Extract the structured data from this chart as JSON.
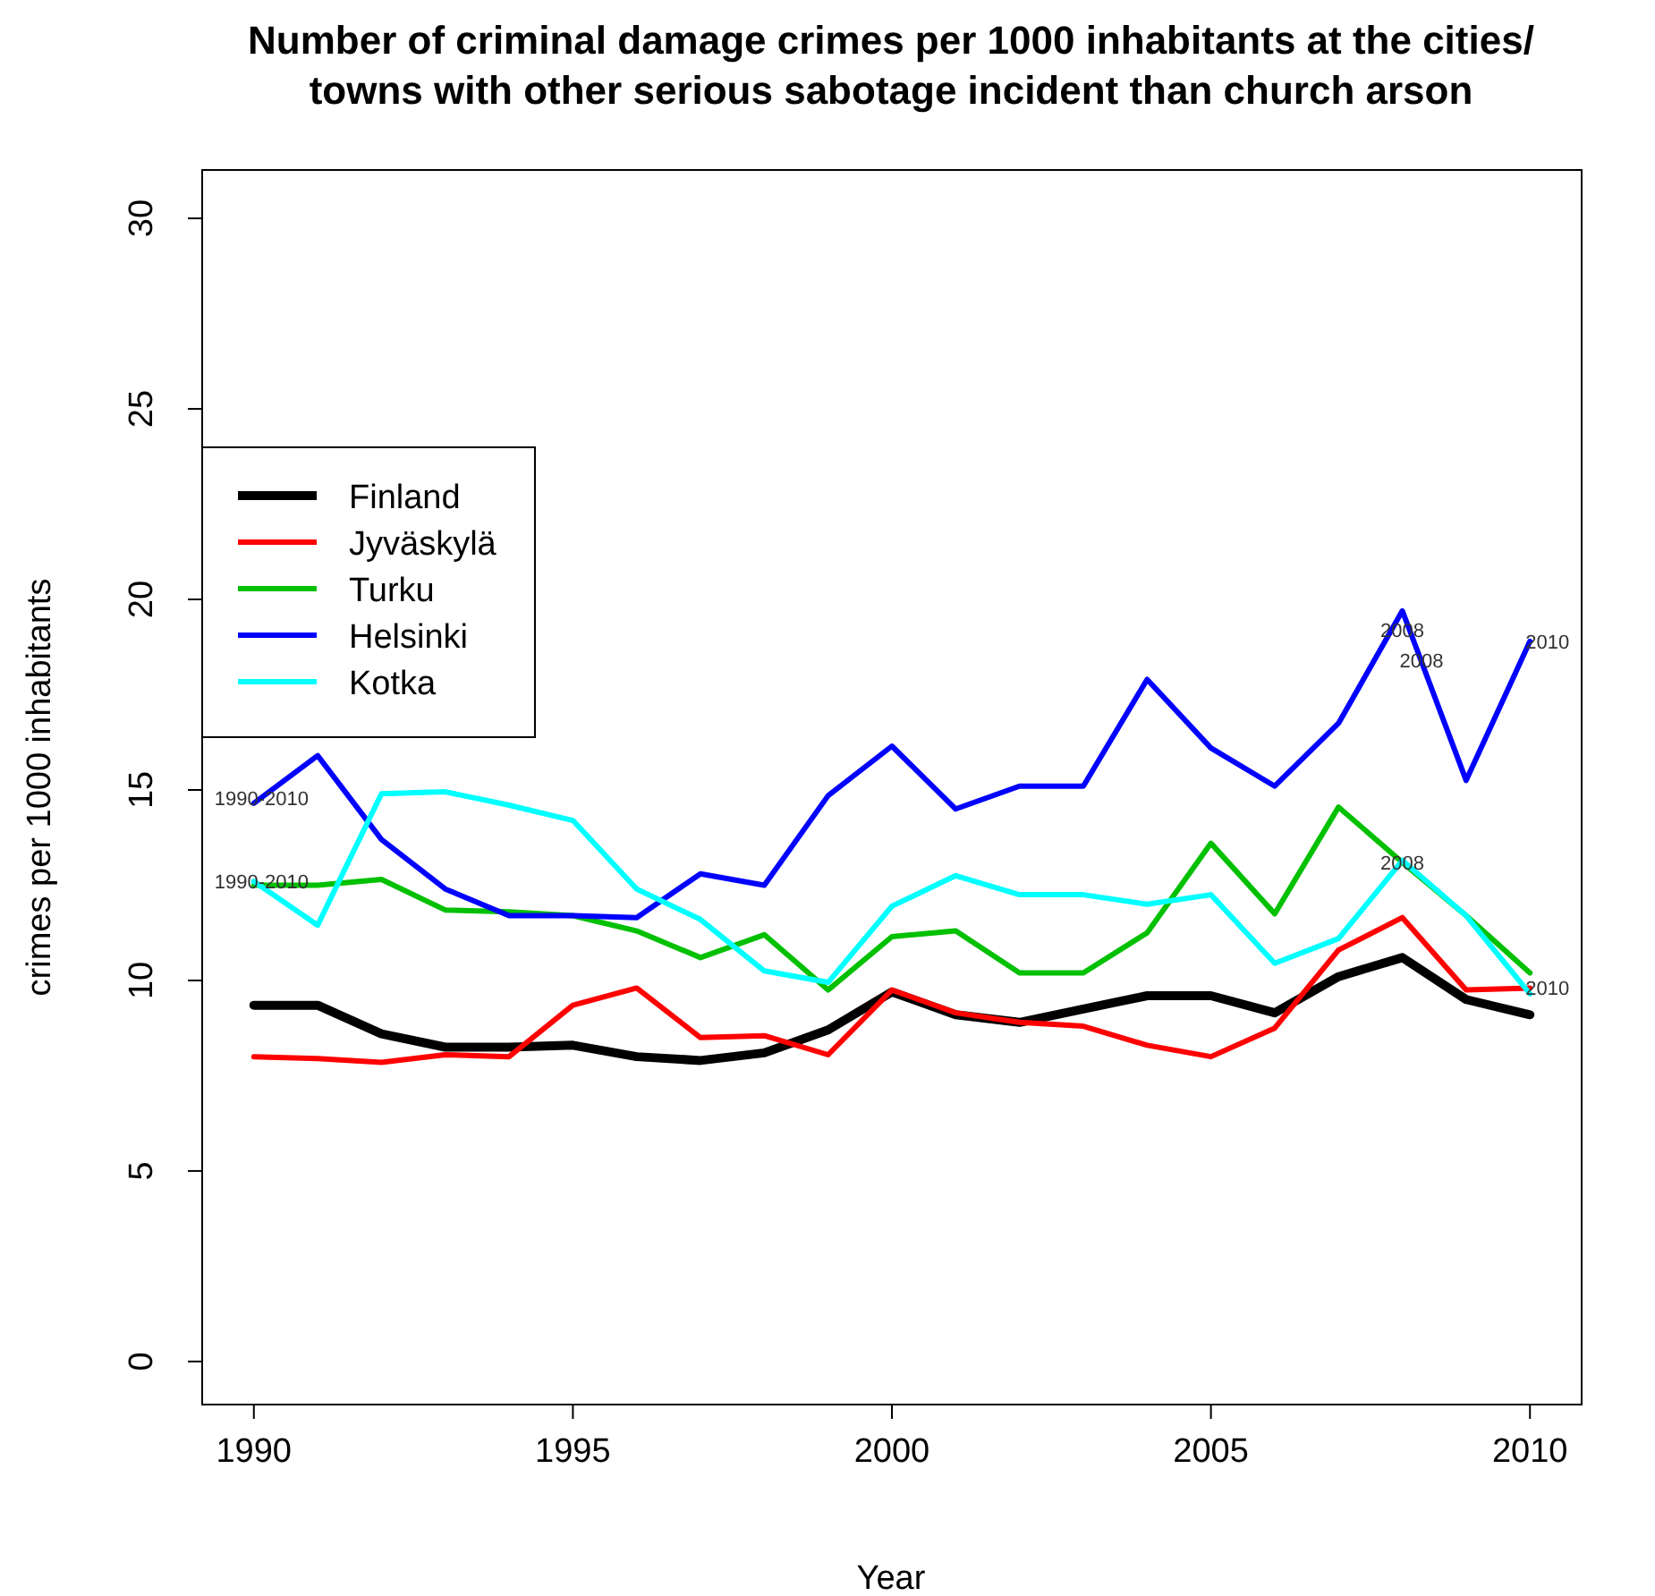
{
  "chart_data": {
    "type": "line",
    "title": "Number of criminal damage crimes per 1000 inhabitants at the cities/ towns with other serious sabotage incident than church arson",
    "xlabel": "Year",
    "ylabel": "crimes per 1000 inhabitants",
    "x": [
      1990,
      1991,
      1992,
      1993,
      1994,
      1995,
      1996,
      1997,
      1998,
      1999,
      2000,
      2001,
      2002,
      2003,
      2004,
      2005,
      2006,
      2007,
      2008,
      2009,
      2010
    ],
    "series": [
      {
        "name": "Finland",
        "color": "#000000",
        "values": [
          9.35,
          9.35,
          8.6,
          8.25,
          8.25,
          8.3,
          8.0,
          7.9,
          8.1,
          8.7,
          9.7,
          9.1,
          8.9,
          9.25,
          9.6,
          9.6,
          9.15,
          10.1,
          10.6,
          9.5,
          9.1
        ]
      },
      {
        "name": "Jyväskylä",
        "color": "#ff0000",
        "values": [
          8.0,
          7.95,
          7.85,
          8.05,
          8.0,
          9.35,
          9.8,
          8.5,
          8.55,
          8.05,
          9.75,
          9.15,
          8.9,
          8.8,
          8.3,
          8.0,
          8.75,
          10.8,
          11.65,
          9.75,
          9.8
        ]
      },
      {
        "name": "Turku",
        "color": "#00c000",
        "values": [
          12.5,
          12.5,
          12.65,
          11.85,
          11.8,
          11.7,
          11.3,
          10.6,
          11.2,
          9.75,
          11.15,
          11.3,
          10.2,
          10.2,
          11.25,
          13.6,
          11.75,
          14.55,
          13.1,
          11.7,
          10.2
        ]
      },
      {
        "name": "Helsinki",
        "color": "#0000ff",
        "values": [
          14.65,
          15.9,
          13.7,
          12.4,
          11.7,
          11.7,
          11.65,
          12.8,
          12.5,
          14.85,
          16.15,
          14.5,
          15.1,
          15.1,
          17.9,
          16.1,
          15.1,
          16.75,
          19.7,
          15.25,
          18.9
        ]
      },
      {
        "name": "Kotka",
        "color": "#00ffff",
        "values": [
          12.6,
          11.45,
          14.9,
          14.95,
          14.6,
          14.2,
          12.4,
          11.6,
          10.25,
          9.95,
          11.95,
          12.75,
          12.25,
          12.25,
          12.0,
          12.25,
          10.45,
          11.1,
          13.15,
          11.7,
          9.65
        ]
      }
    ],
    "annotations": [
      {
        "text": "1990-2010",
        "x": 1990,
        "y": 14.8
      },
      {
        "text": "1990-2010",
        "x": 1990,
        "y": 12.6
      },
      {
        "text": "2008",
        "x": 2008,
        "y": 19.2
      },
      {
        "text": "2008",
        "x": 2008.3,
        "y": 18.4
      },
      {
        "text": "2008",
        "x": 2008,
        "y": 13.1
      },
      {
        "text": "2010",
        "x": 2010,
        "y": 18.9
      },
      {
        "text": "2010",
        "x": 2010,
        "y": 9.8
      }
    ],
    "xlim": [
      1989.19,
      2010.81
    ],
    "ylim": [
      -1.13,
      31.27
    ],
    "xticks": [
      1990,
      1995,
      2000,
      2005,
      2010
    ],
    "yticks": [
      0,
      5,
      10,
      15,
      20,
      25,
      30
    ],
    "legend": "top left",
    "grid": false,
    "marker": "none",
    "line_style": "solid"
  }
}
